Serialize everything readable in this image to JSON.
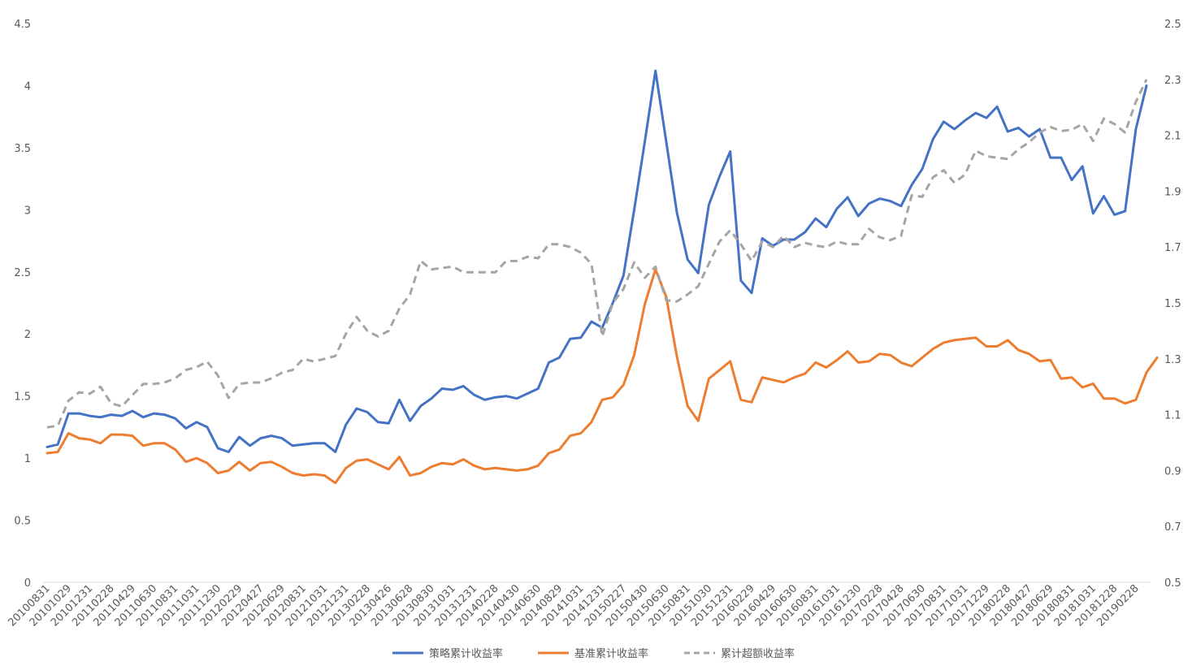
{
  "chart_data": {
    "type": "line",
    "title": "",
    "left_axis": {
      "ylim": [
        0,
        4.5
      ],
      "ticks": [
        "0",
        "0.5",
        "1",
        "1.5",
        "2",
        "2.5",
        "3",
        "3.5",
        "4",
        "4.5"
      ]
    },
    "right_axis": {
      "ylim": [
        0.5,
        2.5
      ],
      "ticks": [
        "0.5",
        "0.7",
        "0.9",
        "1.1",
        "1.3",
        "1.5",
        "1.7",
        "1.9",
        "2.1",
        "2.3",
        "2.5"
      ]
    },
    "x_tick_labels": [
      "20100831",
      "20101029",
      "20101231",
      "20110228",
      "20110429",
      "20110630",
      "20110831",
      "20111031",
      "20111230",
      "20120229",
      "20120427",
      "20120629",
      "20120831",
      "20121031",
      "20121231",
      "20130228",
      "20130426",
      "20130628",
      "20130830",
      "20131031",
      "20131231",
      "20140228",
      "20140430",
      "20140630",
      "20140829",
      "20141031",
      "20141231",
      "20150227",
      "20150430",
      "20150630",
      "20150831",
      "20151030",
      "20151231",
      "20160229",
      "20160429",
      "20160630",
      "20160831",
      "20161031",
      "20161230",
      "20170228",
      "20170428",
      "20170630",
      "20170831",
      "20171031",
      "20171229",
      "20180228",
      "20180427",
      "20180629",
      "20180831",
      "20181031",
      "20181228",
      "20190228"
    ],
    "grid": false,
    "legend_position": "bottom",
    "series": [
      {
        "name": "策略累计收益率",
        "axis": "left",
        "color": "#4472C4",
        "style": "solid",
        "values": [
          1.09,
          1.11,
          1.36,
          1.36,
          1.34,
          1.33,
          1.35,
          1.34,
          1.38,
          1.33,
          1.36,
          1.35,
          1.32,
          1.24,
          1.29,
          1.25,
          1.08,
          1.05,
          1.17,
          1.1,
          1.16,
          1.18,
          1.16,
          1.1,
          1.11,
          1.12,
          1.12,
          1.05,
          1.27,
          1.4,
          1.37,
          1.29,
          1.28,
          1.47,
          1.3,
          1.42,
          1.48,
          1.56,
          1.55,
          1.58,
          1.51,
          1.47,
          1.49,
          1.5,
          1.48,
          1.52,
          1.56,
          1.77,
          1.81,
          1.96,
          1.97,
          2.1,
          2.05,
          2.25,
          2.47,
          3.0,
          3.55,
          4.12,
          3.55,
          2.98,
          2.6,
          2.49,
          3.04,
          3.27,
          3.47,
          2.43,
          2.33,
          2.77,
          2.71,
          2.76,
          2.76,
          2.82,
          2.93,
          2.86,
          3.01,
          3.1,
          2.95,
          3.05,
          3.09,
          3.07,
          3.03,
          3.2,
          3.33,
          3.57,
          3.71,
          3.65,
          3.72,
          3.78,
          3.74,
          3.83,
          3.63,
          3.66,
          3.59,
          3.65,
          3.42,
          3.42,
          3.24,
          3.35,
          2.97,
          3.11,
          2.96,
          2.99,
          3.65,
          4.0
        ]
      },
      {
        "name": "基准累计收益率",
        "axis": "left",
        "color": "#ED7D31",
        "style": "solid",
        "values": [
          1.04,
          1.05,
          1.2,
          1.16,
          1.15,
          1.12,
          1.19,
          1.19,
          1.18,
          1.1,
          1.12,
          1.12,
          1.07,
          0.97,
          1.0,
          0.96,
          0.88,
          0.9,
          0.97,
          0.9,
          0.96,
          0.97,
          0.93,
          0.88,
          0.86,
          0.87,
          0.86,
          0.8,
          0.92,
          0.98,
          0.99,
          0.95,
          0.91,
          1.01,
          0.86,
          0.88,
          0.93,
          0.96,
          0.95,
          0.99,
          0.94,
          0.91,
          0.92,
          0.91,
          0.9,
          0.91,
          0.94,
          1.04,
          1.07,
          1.18,
          1.2,
          1.29,
          1.47,
          1.49,
          1.59,
          1.83,
          2.24,
          2.52,
          2.3,
          1.82,
          1.42,
          1.3,
          1.64,
          1.71,
          1.78,
          1.47,
          1.45,
          1.65,
          1.63,
          1.61,
          1.65,
          1.68,
          1.77,
          1.73,
          1.79,
          1.86,
          1.77,
          1.78,
          1.84,
          1.83,
          1.77,
          1.74,
          1.81,
          1.88,
          1.93,
          1.95,
          1.96,
          1.97,
          1.9,
          1.9,
          1.95,
          1.87,
          1.84,
          1.78,
          1.79,
          1.64,
          1.65,
          1.57,
          1.6,
          1.48,
          1.48,
          1.44,
          1.47,
          1.69,
          1.81
        ]
      },
      {
        "name": "累计超额收益率",
        "axis": "right",
        "color": "#A5A5A5",
        "style": "dashed",
        "values": [
          1.055,
          1.06,
          1.15,
          1.18,
          1.175,
          1.2,
          1.14,
          1.13,
          1.17,
          1.21,
          1.21,
          1.215,
          1.23,
          1.26,
          1.27,
          1.29,
          1.24,
          1.16,
          1.21,
          1.215,
          1.215,
          1.23,
          1.25,
          1.26,
          1.3,
          1.29,
          1.3,
          1.31,
          1.39,
          1.45,
          1.4,
          1.38,
          1.4,
          1.48,
          1.53,
          1.65,
          1.62,
          1.625,
          1.63,
          1.61,
          1.61,
          1.61,
          1.61,
          1.65,
          1.65,
          1.665,
          1.66,
          1.71,
          1.71,
          1.7,
          1.68,
          1.64,
          1.38,
          1.5,
          1.55,
          1.645,
          1.59,
          1.63,
          1.51,
          1.505,
          1.53,
          1.56,
          1.64,
          1.72,
          1.76,
          1.71,
          1.65,
          1.72,
          1.7,
          1.74,
          1.7,
          1.715,
          1.705,
          1.7,
          1.72,
          1.71,
          1.71,
          1.765,
          1.735,
          1.725,
          1.74,
          1.885,
          1.88,
          1.95,
          1.975,
          1.93,
          1.96,
          2.045,
          2.025,
          2.02,
          2.015,
          2.05,
          2.075,
          2.11,
          2.13,
          2.115,
          2.12,
          2.14,
          2.08,
          2.16,
          2.14,
          2.11,
          2.22,
          2.3
        ]
      }
    ]
  }
}
